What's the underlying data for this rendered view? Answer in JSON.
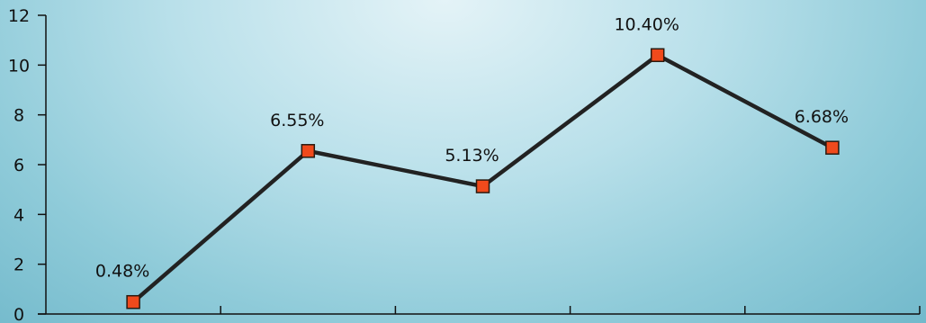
{
  "chart_data": {
    "type": "line",
    "title": "",
    "xlabel": "",
    "ylabel": "",
    "categories": [
      "",
      "",
      "",
      "",
      ""
    ],
    "series": [
      {
        "values": [
          0.48,
          6.55,
          5.13,
          10.4,
          6.68
        ]
      }
    ],
    "data_labels": [
      "0.48%",
      "6.55%",
      "5.13%",
      "10.40%",
      "6.68%"
    ],
    "ylim": [
      0,
      12
    ],
    "y_ticks": [
      "0",
      "2",
      "4",
      "6",
      "8",
      "10",
      "12"
    ],
    "grid": false,
    "legend": "none",
    "colors": {
      "line": "#222222",
      "marker_fill": "#f04a1c",
      "marker_stroke": "#2a1a10",
      "axis": "#111111"
    }
  }
}
